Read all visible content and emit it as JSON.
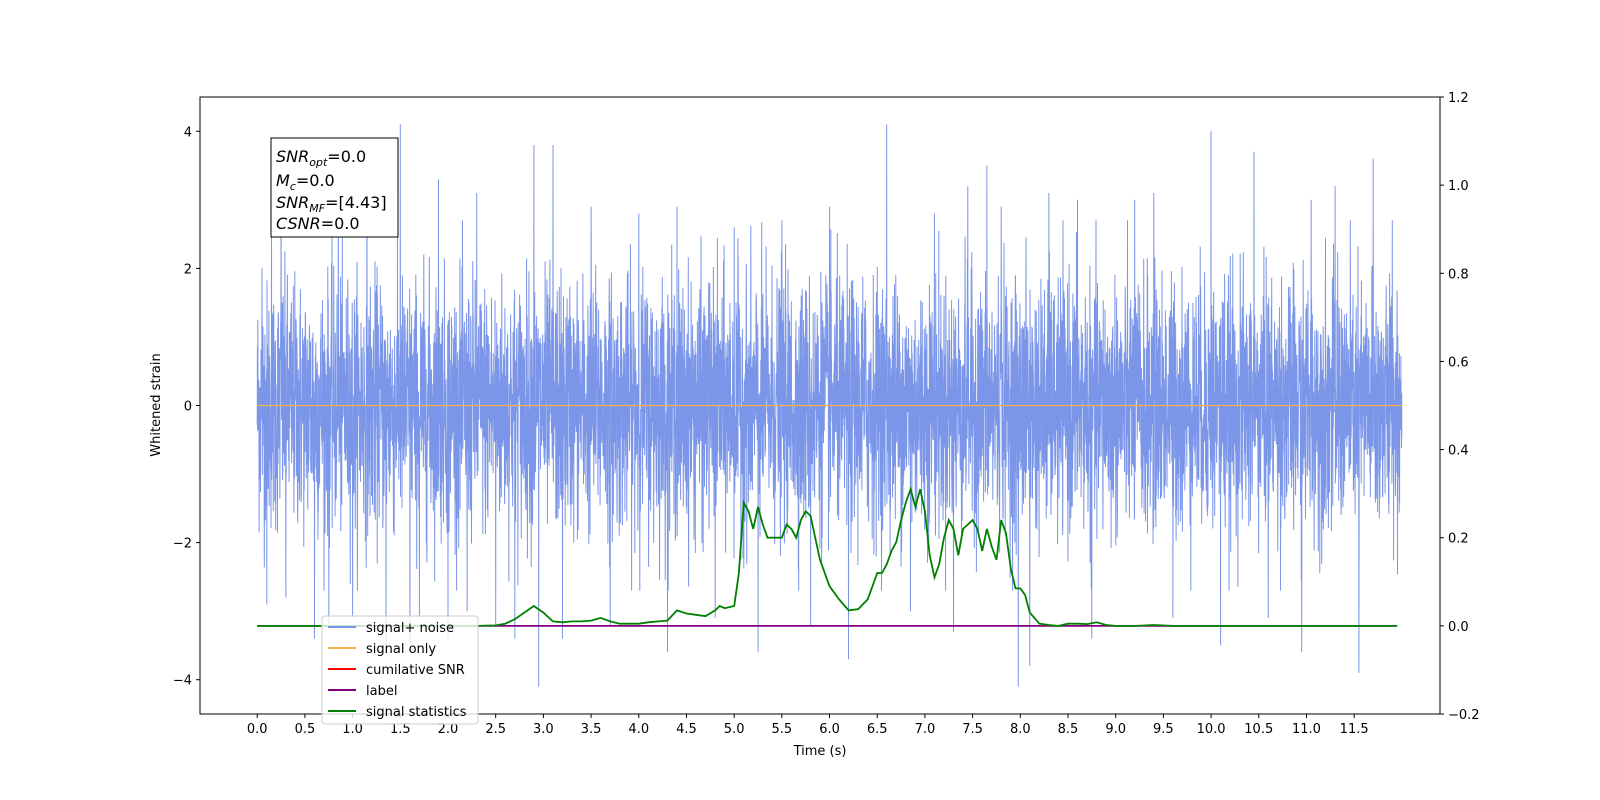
{
  "chart_data": {
    "type": "line",
    "xlabel": "Time (s)",
    "ylabel": "Whitened strain",
    "xlim": [
      -0.6,
      12.4
    ],
    "ylim": [
      -4.5,
      4.5
    ],
    "y2lim": [
      -0.2,
      1.2
    ],
    "x_ticks": [
      0.0,
      0.5,
      1.0,
      1.5,
      2.0,
      2.5,
      3.0,
      3.5,
      4.0,
      4.5,
      5.0,
      5.5,
      6.0,
      6.5,
      7.0,
      7.5,
      8.0,
      8.5,
      9.0,
      9.5,
      10.0,
      10.5,
      11.0,
      11.5
    ],
    "x_tick_labels": [
      "0.0",
      "0.5",
      "1.0",
      "1.5",
      "2.0",
      "2.5",
      "3.0",
      "3.5",
      "4.0",
      "4.5",
      "5.0",
      "5.5",
      "6.0",
      "6.5",
      "7.0",
      "7.5",
      "8.0",
      "8.5",
      "9.0",
      "9.5",
      "10.0",
      "10.5",
      "11.0",
      "11.5"
    ],
    "y_ticks": [
      -4,
      -2,
      0,
      2,
      4
    ],
    "y_tick_labels": [
      "−4",
      "−2",
      "0",
      "2",
      "4"
    ],
    "y2_ticks": [
      -0.2,
      0.0,
      0.2,
      0.4,
      0.6,
      0.8,
      1.0,
      1.2
    ],
    "y2_tick_labels": [
      "−0.2",
      "0.0",
      "0.2",
      "0.4",
      "0.6",
      "0.8",
      "1.0",
      "1.2"
    ],
    "grid": false,
    "legend_position": "lower-left",
    "annotation": {
      "lines": [
        {
          "main": "SNR",
          "sub": "opt",
          "rest": "=0.0"
        },
        {
          "main": "M",
          "sub": "c",
          "rest": "=0.0"
        },
        {
          "main": "SNR",
          "sub": "MF",
          "rest": "=[4.43]"
        },
        {
          "main": "CSNR",
          "sub": "",
          "rest": "=0.0"
        }
      ]
    },
    "series": [
      {
        "name": "signal+ noise",
        "color": "#7b96e8",
        "axis": "left",
        "kind": "noise",
        "x_range": [
          0.0,
          12.0
        ],
        "spread": 0.9,
        "peak_points": [
          {
            "x": 0.05,
            "y": 2.0
          },
          {
            "x": 0.1,
            "y": -2.9
          },
          {
            "x": 0.15,
            "y": 3.2
          },
          {
            "x": 0.25,
            "y": 3.0
          },
          {
            "x": 0.3,
            "y": -2.8
          },
          {
            "x": 0.6,
            "y": -3.4
          },
          {
            "x": 0.75,
            "y": -3.2
          },
          {
            "x": 0.85,
            "y": 3.2
          },
          {
            "x": 1.0,
            "y": -3.1
          },
          {
            "x": 1.15,
            "y": 3.6
          },
          {
            "x": 1.35,
            "y": -3.6
          },
          {
            "x": 1.5,
            "y": 4.1
          },
          {
            "x": 1.6,
            "y": -3.5
          },
          {
            "x": 1.7,
            "y": -3.1
          },
          {
            "x": 1.9,
            "y": 3.3
          },
          {
            "x": 2.0,
            "y": -3.4
          },
          {
            "x": 2.2,
            "y": -3.0
          },
          {
            "x": 2.3,
            "y": 3.1
          },
          {
            "x": 2.5,
            "y": -3.2
          },
          {
            "x": 2.7,
            "y": -3.4
          },
          {
            "x": 2.9,
            "y": 3.8
          },
          {
            "x": 2.95,
            "y": -4.1
          },
          {
            "x": 3.1,
            "y": 3.8
          },
          {
            "x": 3.2,
            "y": -3.4
          },
          {
            "x": 3.5,
            "y": 2.9
          },
          {
            "x": 3.7,
            "y": -3.2
          },
          {
            "x": 4.0,
            "y": 2.8
          },
          {
            "x": 4.3,
            "y": -3.6
          },
          {
            "x": 4.4,
            "y": 2.9
          },
          {
            "x": 4.8,
            "y": -3.1
          },
          {
            "x": 5.0,
            "y": 2.6
          },
          {
            "x": 5.25,
            "y": -3.6
          },
          {
            "x": 5.5,
            "y": 2.7
          },
          {
            "x": 5.8,
            "y": -3.2
          },
          {
            "x": 6.0,
            "y": 2.9
          },
          {
            "x": 6.2,
            "y": -3.7
          },
          {
            "x": 6.6,
            "y": 4.1
          },
          {
            "x": 6.85,
            "y": -3.0
          },
          {
            "x": 7.1,
            "y": 2.8
          },
          {
            "x": 7.3,
            "y": -3.3
          },
          {
            "x": 7.45,
            "y": 3.2
          },
          {
            "x": 7.65,
            "y": 3.5
          },
          {
            "x": 7.8,
            "y": 2.9
          },
          {
            "x": 7.98,
            "y": -4.1
          },
          {
            "x": 8.1,
            "y": -3.8
          },
          {
            "x": 8.3,
            "y": 3.1
          },
          {
            "x": 8.6,
            "y": 3.0
          },
          {
            "x": 8.75,
            "y": -3.4
          },
          {
            "x": 9.2,
            "y": 3.0
          },
          {
            "x": 9.4,
            "y": 3.1
          },
          {
            "x": 9.6,
            "y": -3.1
          },
          {
            "x": 10.0,
            "y": 4.0
          },
          {
            "x": 10.1,
            "y": -3.5
          },
          {
            "x": 10.45,
            "y": 3.7
          },
          {
            "x": 10.6,
            "y": -3.1
          },
          {
            "x": 10.95,
            "y": -3.6
          },
          {
            "x": 11.05,
            "y": 3.0
          },
          {
            "x": 11.3,
            "y": 3.2
          },
          {
            "x": 11.55,
            "y": -3.9
          },
          {
            "x": 11.7,
            "y": 3.6
          },
          {
            "x": 11.9,
            "y": 2.7
          }
        ]
      },
      {
        "name": "signal only",
        "color": "#f5b04e",
        "axis": "left",
        "x": [
          0.0,
          12.0
        ],
        "y": [
          0.0,
          0.0
        ]
      },
      {
        "name": "cumilative SNR",
        "color": "#ff0000",
        "axis": "right",
        "x": [],
        "y": []
      },
      {
        "name": "label",
        "color": "#800080",
        "axis": "right",
        "x": [
          0.0,
          11.95
        ],
        "y": [
          0.0,
          0.0
        ]
      },
      {
        "name": "signal statistics",
        "color": "#008000",
        "axis": "right",
        "x": [
          0.0,
          2.3,
          2.5,
          2.6,
          2.7,
          2.8,
          2.9,
          3.0,
          3.1,
          3.2,
          3.3,
          3.4,
          3.5,
          3.6,
          3.7,
          3.8,
          3.9,
          4.0,
          4.1,
          4.2,
          4.3,
          4.4,
          4.5,
          4.6,
          4.7,
          4.8,
          4.85,
          4.9,
          5.0,
          5.05,
          5.1,
          5.15,
          5.2,
          5.25,
          5.3,
          5.35,
          5.4,
          5.45,
          5.5,
          5.55,
          5.6,
          5.65,
          5.7,
          5.75,
          5.8,
          5.85,
          5.9,
          6.0,
          6.1,
          6.2,
          6.3,
          6.4,
          6.45,
          6.5,
          6.55,
          6.6,
          6.65,
          6.7,
          6.75,
          6.8,
          6.85,
          6.9,
          6.95,
          7.0,
          7.05,
          7.1,
          7.15,
          7.2,
          7.25,
          7.3,
          7.35,
          7.4,
          7.45,
          7.5,
          7.55,
          7.6,
          7.65,
          7.7,
          7.75,
          7.8,
          7.85,
          7.9,
          7.95,
          8.0,
          8.05,
          8.1,
          8.2,
          8.3,
          8.4,
          8.5,
          8.6,
          8.7,
          8.8,
          8.9,
          9.0,
          9.2,
          9.4,
          9.6,
          10.0,
          11.95
        ],
        "y": [
          0.0,
          0.0,
          0.001,
          0.005,
          0.015,
          0.03,
          0.045,
          0.03,
          0.01,
          0.008,
          0.01,
          0.01,
          0.012,
          0.018,
          0.01,
          0.005,
          0.005,
          0.005,
          0.008,
          0.01,
          0.012,
          0.035,
          0.028,
          0.025,
          0.022,
          0.035,
          0.045,
          0.04,
          0.045,
          0.12,
          0.28,
          0.26,
          0.22,
          0.27,
          0.23,
          0.2,
          0.2,
          0.2,
          0.2,
          0.23,
          0.22,
          0.2,
          0.24,
          0.26,
          0.25,
          0.2,
          0.15,
          0.09,
          0.06,
          0.035,
          0.038,
          0.06,
          0.09,
          0.12,
          0.12,
          0.14,
          0.17,
          0.19,
          0.24,
          0.28,
          0.31,
          0.27,
          0.31,
          0.26,
          0.16,
          0.11,
          0.14,
          0.2,
          0.24,
          0.22,
          0.16,
          0.22,
          0.23,
          0.24,
          0.22,
          0.17,
          0.22,
          0.18,
          0.15,
          0.24,
          0.21,
          0.13,
          0.085,
          0.085,
          0.07,
          0.03,
          0.005,
          0.002,
          0.0,
          0.005,
          0.005,
          0.004,
          0.008,
          0.002,
          0.0,
          0.0,
          0.002,
          0.0,
          0.0,
          0.0
        ]
      }
    ]
  }
}
